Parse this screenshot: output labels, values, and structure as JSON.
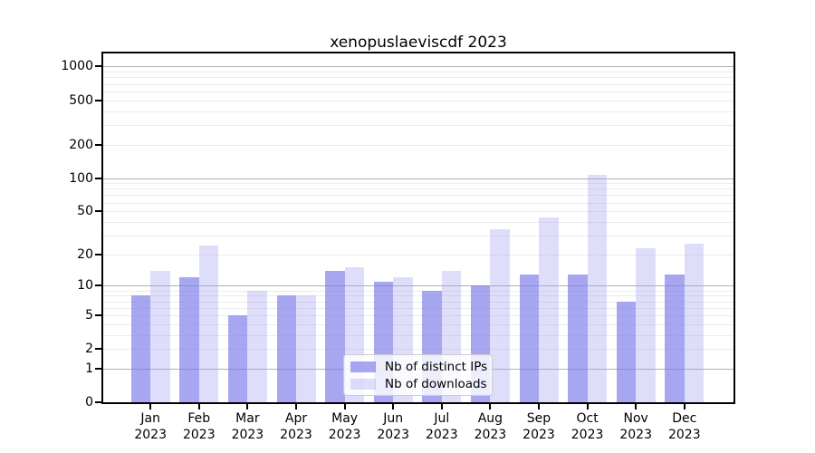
{
  "title": "xenopuslaeviscdf 2023",
  "legend": {
    "ips_label": "Nb of distinct IPs",
    "downloads_label": "Nb of downloads"
  },
  "colors": {
    "ips": "rgba(122,122,233,0.66)",
    "downloads": "rgba(160,160,240,0.35)",
    "major_grid": "#b0b0b0",
    "minor_grid": "#ececec",
    "axis": "#000000"
  },
  "y_axis": {
    "tick_labels": [
      "0",
      "1",
      "2",
      "5",
      "10",
      "20",
      "50",
      "100",
      "200",
      "500",
      "1000"
    ],
    "tick_values": [
      0,
      1,
      2,
      5,
      10,
      20,
      50,
      100,
      200,
      500,
      1000
    ]
  },
  "x_axis": {
    "months": [
      "Jan",
      "Feb",
      "Mar",
      "Apr",
      "May",
      "Jun",
      "Jul",
      "Aug",
      "Sep",
      "Oct",
      "Nov",
      "Dec"
    ],
    "year": "2023"
  },
  "chart_data": {
    "type": "bar",
    "title": "xenopuslaeviscdf 2023",
    "categories": [
      "Jan 2023",
      "Feb 2023",
      "Mar 2023",
      "Apr 2023",
      "May 2023",
      "Jun 2023",
      "Jul 2023",
      "Aug 2023",
      "Sep 2023",
      "Oct 2023",
      "Nov 2023",
      "Dec 2023"
    ],
    "series": [
      {
        "name": "Nb of distinct IPs",
        "values": [
          8,
          12,
          5,
          8,
          14,
          11,
          9,
          10,
          13,
          13,
          7,
          13
        ]
      },
      {
        "name": "Nb of downloads",
        "values": [
          14,
          24,
          9,
          8,
          15,
          12,
          14,
          34,
          44,
          107,
          23,
          25
        ]
      }
    ],
    "yscale": "log10(1+v)",
    "y_ticks": [
      0,
      1,
      2,
      5,
      10,
      20,
      50,
      100,
      200,
      500,
      1000
    ],
    "ylim": [
      0,
      1300
    ],
    "grid": true,
    "legend_position": "lower center"
  }
}
